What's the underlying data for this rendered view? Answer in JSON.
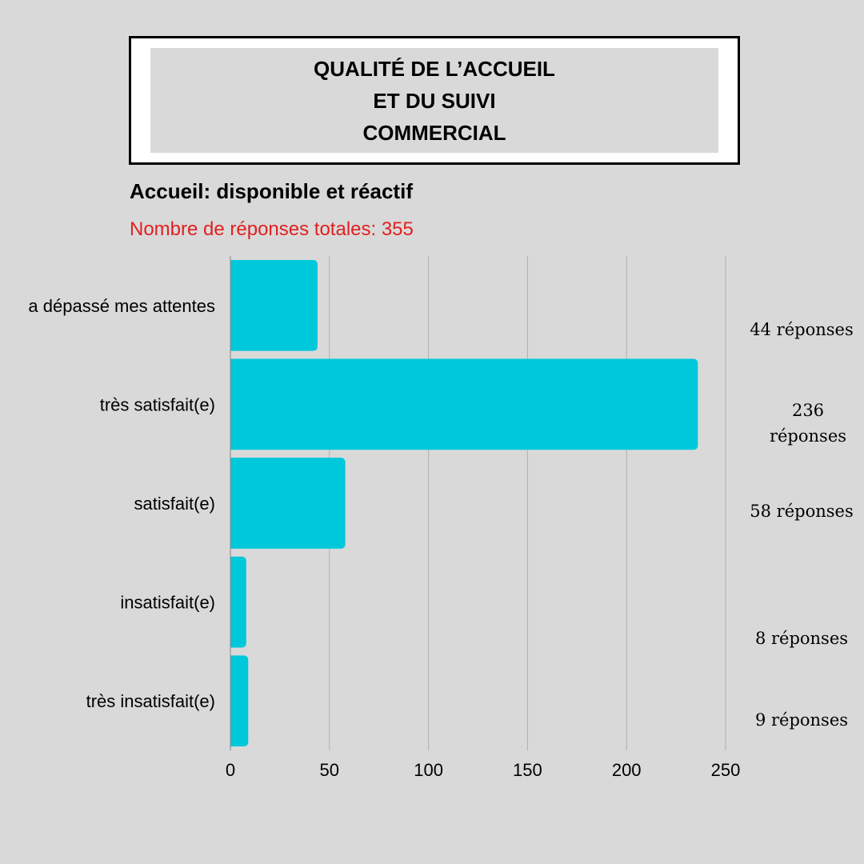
{
  "title": {
    "lines": [
      "QUALITÉ DE L’ACCUEIL",
      "ET DU SUIVI",
      "COMMERCIAL"
    ]
  },
  "subtitle": "Accueil: disponible et réactif",
  "note": "Nombre de réponses totales: 355",
  "colors": {
    "bar": "#00c8db",
    "note": "#e02020",
    "grid": "#b0b0b0",
    "background": "#d9d9d9"
  },
  "chart_data": {
    "type": "bar",
    "orientation": "horizontal",
    "categories": [
      "a dépassé mes attentes",
      "très satisfait(e)",
      "satisfait(e)",
      "insatisfait(e)",
      "très insatisfait(e)"
    ],
    "values": [
      44,
      236,
      58,
      8,
      9
    ],
    "value_labels": [
      [
        "44 réponses"
      ],
      [
        "236",
        "réponses"
      ],
      [
        "58 réponses"
      ],
      [
        "8 réponses"
      ],
      [
        "9 réponses"
      ]
    ],
    "xlim": [
      0,
      250
    ],
    "xticks": [
      0,
      50,
      100,
      150,
      200,
      250
    ],
    "grid": true
  }
}
